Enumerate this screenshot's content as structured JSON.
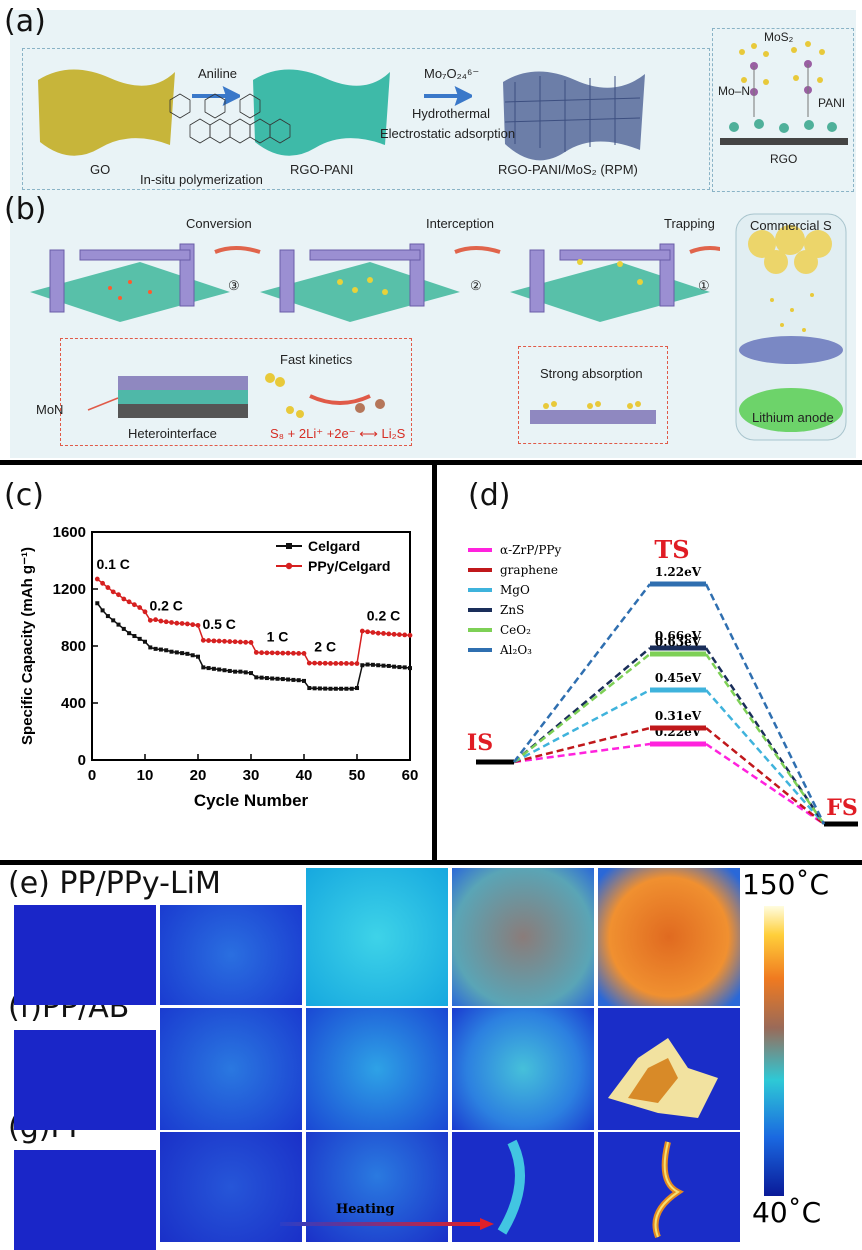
{
  "panels": {
    "a": {
      "label": "(a)",
      "step1": "Aniline",
      "step2": "Mo₇O₂₄⁶⁻",
      "step2b": "Hydrothermal",
      "step2c": "Electrostatic adsorption",
      "insitu": "In-situ polymerization",
      "go": "GO",
      "rgo_pani": "RGO-PANI",
      "rpm": "RGO-PANI/MoS₂ (RPM)",
      "mos2": "MoS₂",
      "mon": "Mo–N",
      "pani": "PANI",
      "rgo": "RGO"
    },
    "b": {
      "label": "(b)",
      "conversion": "Conversion",
      "interception": "Interception",
      "trapping": "Trapping",
      "commercial_s": "Commercial S",
      "step3": "③",
      "step2": "②",
      "step1": "①",
      "fast_kinetics": "Fast kinetics",
      "mon": "MoN",
      "heterointerface": "Heterointerface",
      "reaction": "S₈ + 2Li⁺ +2e⁻ ⟷ Li₂S",
      "strong_absorption": "Strong absorption",
      "lithium_anode": "Lithium anode"
    },
    "c": {
      "label": "(c)"
    },
    "d": {
      "label": "(d)"
    },
    "e": {
      "label": "(e)",
      "name": "PP/PPy-LiM"
    },
    "f": {
      "label": "(f)",
      "name": "PP/AB"
    },
    "g": {
      "label": "(g)",
      "name": "PP"
    },
    "colorbar": {
      "max": "150˚C",
      "min": "40˚C"
    },
    "heating": "Heating"
  },
  "chart_data": [
    {
      "type": "line",
      "xlabel": "Cycle Number",
      "ylabel": "Specific Capacity (mAh g⁻¹)",
      "xlim": [
        0,
        60
      ],
      "ylim": [
        0,
        1600
      ],
      "xticks": [
        0,
        10,
        20,
        30,
        40,
        50,
        60
      ],
      "yticks": [
        0,
        400,
        800,
        1200,
        1600
      ],
      "legend": "top-right",
      "rate_labels": [
        {
          "text": "0.1 C",
          "x": 4,
          "y": 1340
        },
        {
          "text": "0.2 C",
          "x": 14,
          "y": 1050
        },
        {
          "text": "0.5 C",
          "x": 24,
          "y": 920
        },
        {
          "text": "1 C",
          "x": 35,
          "y": 830
        },
        {
          "text": "2 C",
          "x": 44,
          "y": 760
        },
        {
          "text": "0.2 C",
          "x": 55,
          "y": 980
        }
      ],
      "series": [
        {
          "name": "Celgard",
          "color": "#111111",
          "x": [
            1,
            2,
            3,
            4,
            5,
            6,
            7,
            8,
            9,
            10,
            11,
            12,
            13,
            14,
            15,
            16,
            17,
            18,
            19,
            20,
            21,
            22,
            23,
            24,
            25,
            26,
            27,
            28,
            29,
            30,
            31,
            32,
            33,
            34,
            35,
            36,
            37,
            38,
            39,
            40,
            41,
            42,
            43,
            44,
            45,
            46,
            47,
            48,
            49,
            50,
            51,
            52,
            53,
            54,
            55,
            56,
            57,
            58,
            59,
            60
          ],
          "values": [
            1100,
            1050,
            1010,
            980,
            950,
            920,
            890,
            870,
            850,
            830,
            790,
            780,
            775,
            770,
            760,
            755,
            750,
            745,
            735,
            725,
            650,
            645,
            640,
            635,
            630,
            625,
            620,
            620,
            615,
            610,
            580,
            578,
            575,
            572,
            570,
            568,
            565,
            562,
            560,
            555,
            505,
            503,
            502,
            501,
            500,
            500,
            500,
            500,
            500,
            505,
            665,
            670,
            668,
            665,
            662,
            660,
            655,
            652,
            650,
            645
          ]
        },
        {
          "name": "PPy/Celgard",
          "color": "#d62020",
          "x": [
            1,
            2,
            3,
            4,
            5,
            6,
            7,
            8,
            9,
            10,
            11,
            12,
            13,
            14,
            15,
            16,
            17,
            18,
            19,
            20,
            21,
            22,
            23,
            24,
            25,
            26,
            27,
            28,
            29,
            30,
            31,
            32,
            33,
            34,
            35,
            36,
            37,
            38,
            39,
            40,
            41,
            42,
            43,
            44,
            45,
            46,
            47,
            48,
            49,
            50,
            51,
            52,
            53,
            54,
            55,
            56,
            57,
            58,
            59,
            60
          ],
          "values": [
            1270,
            1240,
            1210,
            1180,
            1160,
            1130,
            1110,
            1090,
            1070,
            1040,
            980,
            985,
            975,
            970,
            965,
            960,
            958,
            955,
            950,
            945,
            840,
            838,
            836,
            835,
            833,
            831,
            830,
            828,
            826,
            825,
            755,
            753,
            752,
            752,
            751,
            750,
            750,
            749,
            748,
            748,
            680,
            680,
            679,
            679,
            678,
            678,
            678,
            678,
            677,
            677,
            905,
            900,
            895,
            890,
            888,
            885,
            882,
            880,
            878,
            875
          ]
        }
      ]
    },
    {
      "type": "diagram",
      "title": "TS",
      "is_label": "IS",
      "fs_label": "FS",
      "legend": "top-left",
      "series": [
        {
          "name": "α-ZrP/PPy",
          "energy": "0.22eV",
          "color": "#ff22dd"
        },
        {
          "name": "graphene",
          "energy": "0.31eV",
          "color": "#c0181b"
        },
        {
          "name": "MgO",
          "energy": "0.45eV",
          "color": "#3fb3dc"
        },
        {
          "name": "ZnS",
          "energy": "0.66eV",
          "color": "#1a2e5a"
        },
        {
          "name": "CeO₂",
          "energy": "0.63eV",
          "color": "#7ed056"
        },
        {
          "name": "Al₂O₃",
          "energy": "1.22eV",
          "color": "#2f6fb0"
        }
      ]
    }
  ]
}
